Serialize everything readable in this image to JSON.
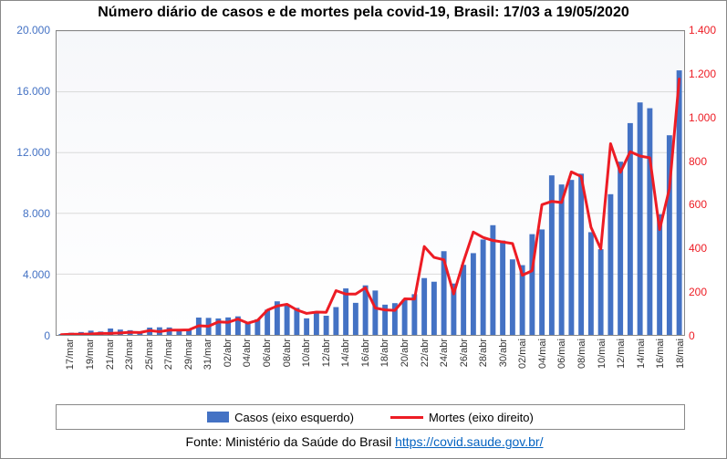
{
  "title": "Número diário de casos e de mortes pela covid-19, Brasil: 17/03 a 19/05/2020",
  "source_prefix": "Fonte: Ministério da Saúde do Brasil  ",
  "source_link_text": "https://covid.saude.gov.br/",
  "source_link_href": "https://covid.saude.gov.br/",
  "legend": {
    "cases": "Casos (eixo esquerdo)",
    "deaths": "Mortes (eixo direito)"
  },
  "chart": {
    "type": "bar+line",
    "background_gradient": [
      "#f6f7fa",
      "#ffffff"
    ],
    "grid_color": "#d9d9d9",
    "bar_color": "#4472c4",
    "line_color": "#ed1c24",
    "line_width": 3,
    "bar_width_ratio": 0.55,
    "y_left": {
      "min": 0,
      "max": 20000,
      "step": 4000,
      "color": "#4472c4",
      "ticks": [
        "0",
        "4.000",
        "8.000",
        "12.000",
        "16.000",
        "20.000"
      ]
    },
    "y_right": {
      "min": 0,
      "max": 1400,
      "step": 200,
      "color": "#ed1c24",
      "ticks": [
        "0",
        "200",
        "400",
        "600",
        "800",
        "1.000",
        "1.200",
        "1.400"
      ]
    },
    "x_visible_labels": [
      "17/mar",
      "19/mar",
      "21/mar",
      "23/mar",
      "25/mar",
      "27/mar",
      "29/mar",
      "31/mar",
      "02/abr",
      "04/abr",
      "06/abr",
      "08/abr",
      "10/abr",
      "12/abr",
      "14/abr",
      "16/abr",
      "18/abr",
      "20/abr",
      "22/abr",
      "24/abr",
      "26/abr",
      "28/abr",
      "30/abr",
      "02/mai",
      "04/mai",
      "06/mai",
      "08/mai",
      "10/mai",
      "12/mai",
      "14/mai",
      "16/mai",
      "18/mai"
    ],
    "data": [
      {
        "d": "17/mar",
        "c": 60,
        "m": 1
      },
      {
        "d": "18/mar",
        "c": 140,
        "m": 3
      },
      {
        "d": "19/mar",
        "c": 190,
        "m": 3
      },
      {
        "d": "20/mar",
        "c": 280,
        "m": 4
      },
      {
        "d": "21/mar",
        "c": 220,
        "m": 7
      },
      {
        "d": "22/mar",
        "c": 420,
        "m": 7
      },
      {
        "d": "23/mar",
        "c": 350,
        "m": 9
      },
      {
        "d": "24/mar",
        "c": 310,
        "m": 12
      },
      {
        "d": "25/mar",
        "c": 230,
        "m": 11
      },
      {
        "d": "26/mar",
        "c": 480,
        "m": 20
      },
      {
        "d": "27/mar",
        "c": 500,
        "m": 15
      },
      {
        "d": "28/mar",
        "c": 490,
        "m": 22
      },
      {
        "d": "29/mar",
        "c": 350,
        "m": 22
      },
      {
        "d": "30/mar",
        "c": 320,
        "m": 23
      },
      {
        "d": "31/mar",
        "c": 1140,
        "m": 42
      },
      {
        "d": "01/abr",
        "c": 1120,
        "m": 40
      },
      {
        "d": "02/abr",
        "c": 1080,
        "m": 60
      },
      {
        "d": "03/abr",
        "c": 1150,
        "m": 58
      },
      {
        "d": "04/abr",
        "c": 1220,
        "m": 73
      },
      {
        "d": "05/abr",
        "c": 770,
        "m": 54
      },
      {
        "d": "06/abr",
        "c": 1030,
        "m": 67
      },
      {
        "d": "07/abr",
        "c": 1660,
        "m": 114
      },
      {
        "d": "08/abr",
        "c": 2210,
        "m": 133
      },
      {
        "d": "09/abr",
        "c": 1930,
        "m": 141
      },
      {
        "d": "10/abr",
        "c": 1780,
        "m": 115
      },
      {
        "d": "11/abr",
        "c": 1090,
        "m": 99
      },
      {
        "d": "12/abr",
        "c": 1440,
        "m": 105
      },
      {
        "d": "13/abr",
        "c": 1260,
        "m": 104
      },
      {
        "d": "14/abr",
        "c": 1830,
        "m": 204
      },
      {
        "d": "15/abr",
        "c": 3060,
        "m": 188
      },
      {
        "d": "16/abr",
        "c": 2110,
        "m": 188
      },
      {
        "d": "17/abr",
        "c": 3260,
        "m": 217
      },
      {
        "d": "18/abr",
        "c": 2920,
        "m": 124
      },
      {
        "d": "19/abr",
        "c": 1990,
        "m": 115
      },
      {
        "d": "20/abr",
        "c": 2090,
        "m": 113
      },
      {
        "d": "21/abr",
        "c": 2340,
        "m": 166
      },
      {
        "d": "22/abr",
        "c": 2680,
        "m": 165
      },
      {
        "d": "23/abr",
        "c": 3740,
        "m": 407
      },
      {
        "d": "24/abr",
        "c": 3500,
        "m": 357
      },
      {
        "d": "25/abr",
        "c": 5510,
        "m": 346
      },
      {
        "d": "26/abr",
        "c": 3380,
        "m": 189
      },
      {
        "d": "27/abr",
        "c": 4610,
        "m": 338
      },
      {
        "d": "28/abr",
        "c": 5380,
        "m": 474
      },
      {
        "d": "29/abr",
        "c": 6280,
        "m": 449
      },
      {
        "d": "30/abr",
        "c": 7220,
        "m": 435
      },
      {
        "d": "01/mai",
        "c": 6210,
        "m": 428
      },
      {
        "d": "02/mai",
        "c": 4970,
        "m": 421
      },
      {
        "d": "03/mai",
        "c": 4590,
        "m": 275
      },
      {
        "d": "04/mai",
        "c": 6630,
        "m": 296
      },
      {
        "d": "05/mai",
        "c": 6940,
        "m": 600
      },
      {
        "d": "06/mai",
        "c": 10500,
        "m": 615
      },
      {
        "d": "07/mai",
        "c": 9900,
        "m": 610
      },
      {
        "d": "08/mai",
        "c": 10200,
        "m": 751
      },
      {
        "d": "09/mai",
        "c": 10610,
        "m": 730
      },
      {
        "d": "10/mai",
        "c": 6760,
        "m": 496
      },
      {
        "d": "11/mai",
        "c": 5640,
        "m": 396
      },
      {
        "d": "12/mai",
        "c": 9260,
        "m": 881
      },
      {
        "d": "13/mai",
        "c": 11400,
        "m": 749
      },
      {
        "d": "14/mai",
        "c": 13940,
        "m": 844
      },
      {
        "d": "15/mai",
        "c": 15300,
        "m": 824
      },
      {
        "d": "16/mai",
        "c": 14920,
        "m": 816
      },
      {
        "d": "17/mai",
        "c": 7940,
        "m": 485
      },
      {
        "d": "18/mai",
        "c": 13140,
        "m": 674
      },
      {
        "d": "19/mai",
        "c": 17410,
        "m": 1179
      }
    ]
  }
}
